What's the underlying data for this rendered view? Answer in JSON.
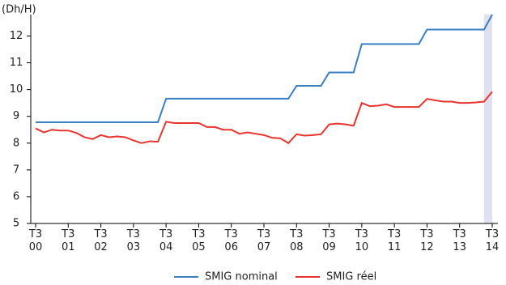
{
  "chart_data": {
    "type": "line",
    "y_label": "(Dh/H)",
    "categories": [
      "T3\n00",
      null,
      null,
      null,
      "T3\n01",
      null,
      null,
      null,
      "T3\n02",
      null,
      null,
      null,
      "T3\n03",
      null,
      null,
      null,
      "T3\n04",
      null,
      null,
      null,
      "T3\n05",
      null,
      null,
      null,
      "T3\n06",
      null,
      null,
      null,
      "T3\n07",
      null,
      null,
      null,
      "T3\n08",
      null,
      null,
      null,
      "T3\n09",
      null,
      null,
      null,
      "T3\n10",
      null,
      null,
      null,
      "T3\n11",
      null,
      null,
      null,
      "T3\n12",
      null,
      null,
      null,
      "T3\n13",
      null,
      null,
      null,
      "T3\n14"
    ],
    "series": [
      {
        "name": "SMIG nominal",
        "color": "#3a7fc4",
        "values": [
          8.78,
          8.78,
          8.78,
          8.78,
          8.78,
          8.78,
          8.78,
          8.78,
          8.78,
          8.78,
          8.78,
          8.78,
          8.78,
          8.78,
          8.78,
          8.78,
          9.66,
          9.66,
          9.66,
          9.66,
          9.66,
          9.66,
          9.66,
          9.66,
          9.66,
          9.66,
          9.66,
          9.66,
          9.66,
          9.66,
          9.66,
          9.66,
          10.14,
          10.14,
          10.14,
          10.14,
          10.64,
          10.64,
          10.64,
          10.64,
          11.7,
          11.7,
          11.7,
          11.7,
          11.7,
          11.7,
          11.7,
          11.7,
          12.24,
          12.24,
          12.24,
          12.24,
          12.24,
          12.24,
          12.24,
          12.24,
          12.8
        ]
      },
      {
        "name": "SMIG réel",
        "color": "#e8332e",
        "values": [
          8.55,
          8.4,
          8.5,
          8.47,
          8.47,
          8.38,
          8.22,
          8.15,
          8.3,
          8.22,
          8.25,
          8.22,
          8.1,
          8.0,
          8.07,
          8.05,
          8.8,
          8.75,
          8.75,
          8.75,
          8.75,
          8.6,
          8.6,
          8.5,
          8.5,
          8.35,
          8.4,
          8.35,
          8.3,
          8.2,
          8.18,
          8.0,
          8.33,
          8.28,
          8.3,
          8.33,
          8.7,
          8.73,
          8.7,
          8.65,
          9.5,
          9.38,
          9.4,
          9.45,
          9.35,
          9.35,
          9.35,
          9.35,
          9.65,
          9.6,
          9.55,
          9.55,
          9.5,
          9.5,
          9.52,
          9.55,
          9.92
        ]
      }
    ],
    "ylim": [
      5,
      12.8
    ],
    "yticks": [
      5,
      6,
      7,
      8,
      9,
      10,
      11,
      12
    ],
    "grid": false
  }
}
